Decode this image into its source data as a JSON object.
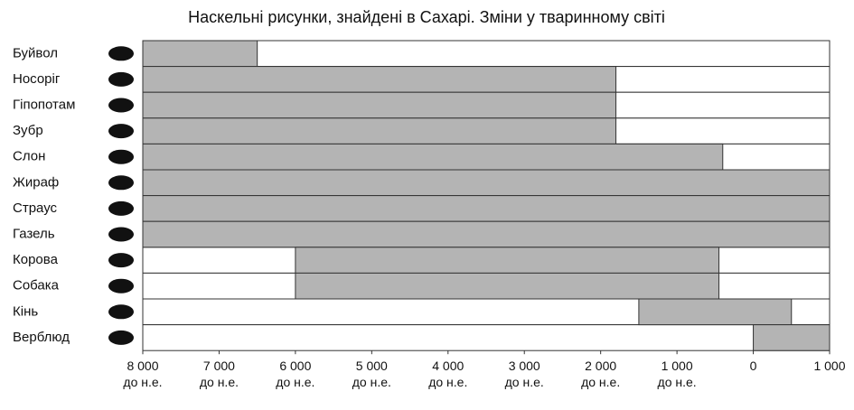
{
  "chart_data": {
    "type": "range-bar",
    "title": "Наскельні рисунки, знайдені в Сахарі. Зміни у тваринному світі",
    "categories": [
      "Буйвол",
      "Носоріг",
      "Гіпопотам",
      "Зубр",
      "Слон",
      "Жираф",
      "Страус",
      "Газель",
      "Корова",
      "Собака",
      "Кінь",
      "Верблюд"
    ],
    "values": [
      [
        -8000,
        -6500
      ],
      [
        -8000,
        -1800
      ],
      [
        -8000,
        -1800
      ],
      [
        -8000,
        -1800
      ],
      [
        -8000,
        -400
      ],
      [
        -8000,
        1000
      ],
      [
        -8000,
        1000
      ],
      [
        -8000,
        1000
      ],
      [
        -6000,
        -450
      ],
      [
        -6000,
        -450
      ],
      [
        -1500,
        500
      ],
      [
        0,
        1000
      ]
    ],
    "color": "#b4b4b4",
    "xlim": [
      -8000,
      1000
    ],
    "xticks": [
      {
        "value": -8000,
        "label": "8 000 до н.е."
      },
      {
        "value": -7000,
        "label": "7 000 до н.е."
      },
      {
        "value": -6000,
        "label": "6 000 до н.е."
      },
      {
        "value": -5000,
        "label": "5 000 до н.е."
      },
      {
        "value": -4000,
        "label": "4 000 до н.е."
      },
      {
        "value": -3000,
        "label": "3 000 до н.е."
      },
      {
        "value": -2000,
        "label": "2 000 до н.е."
      },
      {
        "value": -1000,
        "label": "1 000 до н.е."
      },
      0,
      {
        "value": 1000,
        "label": "1 000"
      }
    ]
  }
}
